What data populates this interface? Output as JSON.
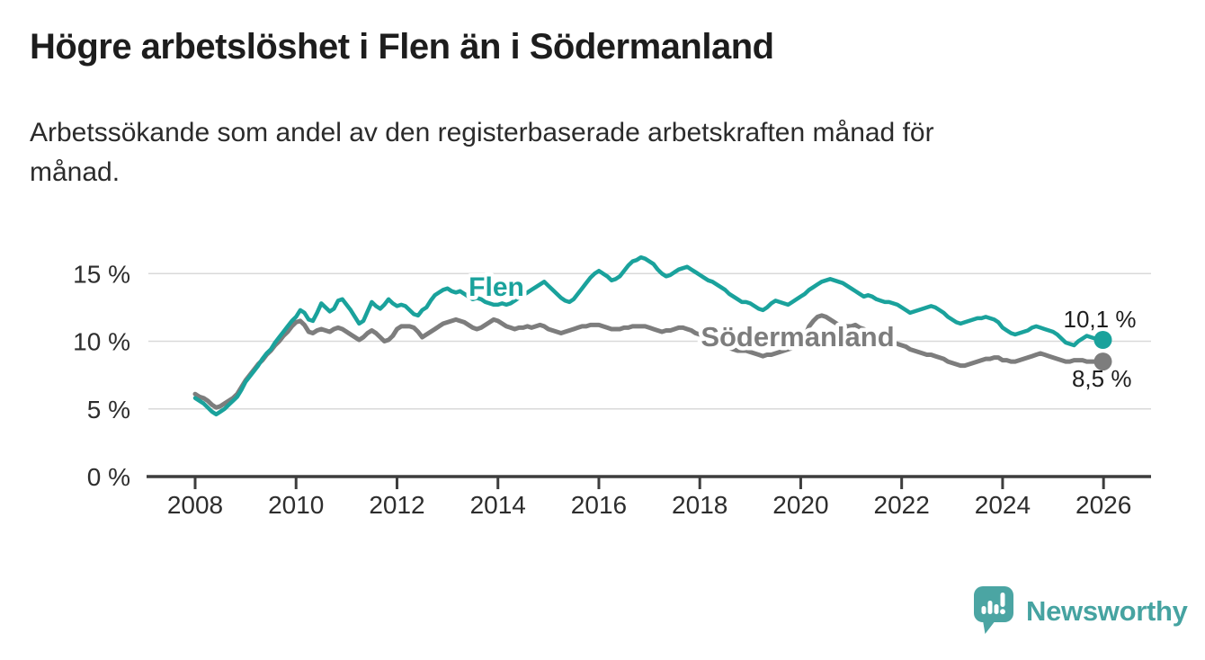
{
  "title": "Högre arbetslöshet i Flen än i Södermanland",
  "subtitle_lines": [
    "Arbetssökande som andel av den registerbaserade arbetskraften månad för",
    "månad."
  ],
  "branding": {
    "name": "Newsworthy",
    "text_color": "#46a3a1",
    "icon_color": "#4ba5a3",
    "icon": "speech-bubble-bar-chart-icon"
  },
  "chart_data": {
    "type": "line",
    "x_start_year": 2008,
    "x_interval": "monthly",
    "x_axis_ticks": [
      2008,
      2010,
      2012,
      2014,
      2016,
      2018,
      2020,
      2022,
      2024,
      2026
    ],
    "y_axis_ticks": [
      {
        "value": 0,
        "label": "0 %"
      },
      {
        "value": 5,
        "label": "5 %"
      },
      {
        "value": 10,
        "label": "10 %"
      },
      {
        "value": 15,
        "label": "15 %"
      }
    ],
    "ylim": [
      0,
      16.6
    ],
    "grid": "horizontal",
    "legend_position": "inline-labels",
    "colors": {
      "grid": "#d9d9d9",
      "axis": "#3d3d3d",
      "tick_text": "#2d2d2d"
    },
    "series": [
      {
        "name": "Flen",
        "color": "#1aa29c",
        "line_width": 4.5,
        "end_label": "10,1 %",
        "end_value": 10.1,
        "label_anchor": {
          "year": 2013.42,
          "value": 13.35
        },
        "end_label_offset": {
          "dx": 41,
          "dy": -14
        },
        "values": [
          5.8,
          5.6,
          5.4,
          5.1,
          4.8,
          4.6,
          4.8,
          5.0,
          5.3,
          5.6,
          5.9,
          6.4,
          7.0,
          7.4,
          7.8,
          8.2,
          8.7,
          9.1,
          9.4,
          9.9,
          10.3,
          10.7,
          11.1,
          11.5,
          11.8,
          12.3,
          12.1,
          11.6,
          11.5,
          12.1,
          12.8,
          12.5,
          12.2,
          12.4,
          13.0,
          13.1,
          12.7,
          12.3,
          11.8,
          11.3,
          11.5,
          12.2,
          12.9,
          12.6,
          12.4,
          12.7,
          13.1,
          12.8,
          12.6,
          12.7,
          12.6,
          12.3,
          12.0,
          11.9,
          12.3,
          12.5,
          13.0,
          13.4,
          13.6,
          13.8,
          13.9,
          13.7,
          13.6,
          13.7,
          13.5,
          13.3,
          13.1,
          13.2,
          13.1,
          12.9,
          12.8,
          12.7,
          12.7,
          12.8,
          12.7,
          12.8,
          13.0,
          13.2,
          13.4,
          13.6,
          13.8,
          14.0,
          14.2,
          14.4,
          14.1,
          13.8,
          13.5,
          13.2,
          13.0,
          12.9,
          13.1,
          13.5,
          13.9,
          14.3,
          14.7,
          15.0,
          15.2,
          15.0,
          14.8,
          14.5,
          14.6,
          14.8,
          15.2,
          15.6,
          15.9,
          16.0,
          16.2,
          16.1,
          15.9,
          15.7,
          15.3,
          15.0,
          14.8,
          14.9,
          15.1,
          15.3,
          15.4,
          15.5,
          15.3,
          15.1,
          14.9,
          14.7,
          14.5,
          14.4,
          14.2,
          14.0,
          13.8,
          13.5,
          13.3,
          13.1,
          12.9,
          12.9,
          12.8,
          12.6,
          12.4,
          12.3,
          12.5,
          12.8,
          13.0,
          12.9,
          12.8,
          12.7,
          12.9,
          13.1,
          13.3,
          13.5,
          13.8,
          14.0,
          14.2,
          14.4,
          14.5,
          14.6,
          14.5,
          14.4,
          14.3,
          14.1,
          13.9,
          13.7,
          13.5,
          13.3,
          13.4,
          13.3,
          13.1,
          13.0,
          12.9,
          12.9,
          12.8,
          12.7,
          12.5,
          12.3,
          12.1,
          12.2,
          12.3,
          12.4,
          12.5,
          12.6,
          12.5,
          12.3,
          12.1,
          11.8,
          11.6,
          11.4,
          11.3,
          11.4,
          11.5,
          11.6,
          11.7,
          11.7,
          11.8,
          11.7,
          11.6,
          11.4,
          11.0,
          10.8,
          10.6,
          10.5,
          10.6,
          10.7,
          10.8,
          11.0,
          11.1,
          11.0,
          10.9,
          10.8,
          10.7,
          10.5,
          10.2,
          9.9,
          9.8,
          9.7,
          10.0,
          10.2,
          10.4,
          10.3,
          10.2,
          10.1
        ]
      },
      {
        "name": "Södermanland",
        "color": "#7d7d7d",
        "line_width": 5,
        "end_label": "8,5 %",
        "end_value": 8.5,
        "label_anchor": {
          "year": 2018.02,
          "value": 9.62
        },
        "end_label_offset": {
          "dx": 36,
          "dy": 28
        },
        "values": [
          6.1,
          5.9,
          5.8,
          5.6,
          5.3,
          5.1,
          5.2,
          5.4,
          5.6,
          5.8,
          6.1,
          6.6,
          7.1,
          7.5,
          7.9,
          8.3,
          8.6,
          9.0,
          9.3,
          9.7,
          10.0,
          10.4,
          10.7,
          11.1,
          11.4,
          11.5,
          11.2,
          10.7,
          10.6,
          10.8,
          10.9,
          10.8,
          10.7,
          10.9,
          11.0,
          10.9,
          10.7,
          10.5,
          10.3,
          10.1,
          10.3,
          10.6,
          10.8,
          10.6,
          10.3,
          10.0,
          10.1,
          10.4,
          10.9,
          11.1,
          11.1,
          11.1,
          11.0,
          10.7,
          10.3,
          10.5,
          10.7,
          10.9,
          11.1,
          11.3,
          11.4,
          11.5,
          11.6,
          11.5,
          11.4,
          11.2,
          11.0,
          10.9,
          11.0,
          11.2,
          11.4,
          11.6,
          11.5,
          11.3,
          11.1,
          11.0,
          10.9,
          11.0,
          11.0,
          11.1,
          11.0,
          11.1,
          11.2,
          11.1,
          10.9,
          10.8,
          10.7,
          10.6,
          10.7,
          10.8,
          10.9,
          11.0,
          11.1,
          11.1,
          11.2,
          11.2,
          11.2,
          11.1,
          11.0,
          10.9,
          10.9,
          10.9,
          11.0,
          11.0,
          11.1,
          11.1,
          11.1,
          11.1,
          11.0,
          10.9,
          10.8,
          10.7,
          10.8,
          10.8,
          10.9,
          11.0,
          11.0,
          10.9,
          10.8,
          10.6,
          10.5,
          10.4,
          10.3,
          10.2,
          10.0,
          9.8,
          9.6,
          9.5,
          9.4,
          9.3,
          9.3,
          9.3,
          9.2,
          9.1,
          9.0,
          8.9,
          9.0,
          9.0,
          9.1,
          9.2,
          9.3,
          9.4,
          9.5,
          9.7,
          9.9,
          10.4,
          11.1,
          11.5,
          11.8,
          11.9,
          11.8,
          11.6,
          11.4,
          11.2,
          11.1,
          11.1,
          11.1,
          11.2,
          11.0,
          10.9,
          10.7,
          10.5,
          10.3,
          10.2,
          10.0,
          9.9,
          9.9,
          9.8,
          9.7,
          9.6,
          9.4,
          9.3,
          9.2,
          9.1,
          9.0,
          9.0,
          8.9,
          8.8,
          8.7,
          8.5,
          8.4,
          8.3,
          8.2,
          8.2,
          8.3,
          8.4,
          8.5,
          8.6,
          8.7,
          8.7,
          8.8,
          8.8,
          8.6,
          8.6,
          8.5,
          8.5,
          8.6,
          8.7,
          8.8,
          8.9,
          9.0,
          9.1,
          9.0,
          8.9,
          8.8,
          8.7,
          8.6,
          8.5,
          8.5,
          8.6,
          8.6,
          8.6,
          8.5,
          8.5,
          8.5,
          8.5
        ]
      }
    ]
  }
}
